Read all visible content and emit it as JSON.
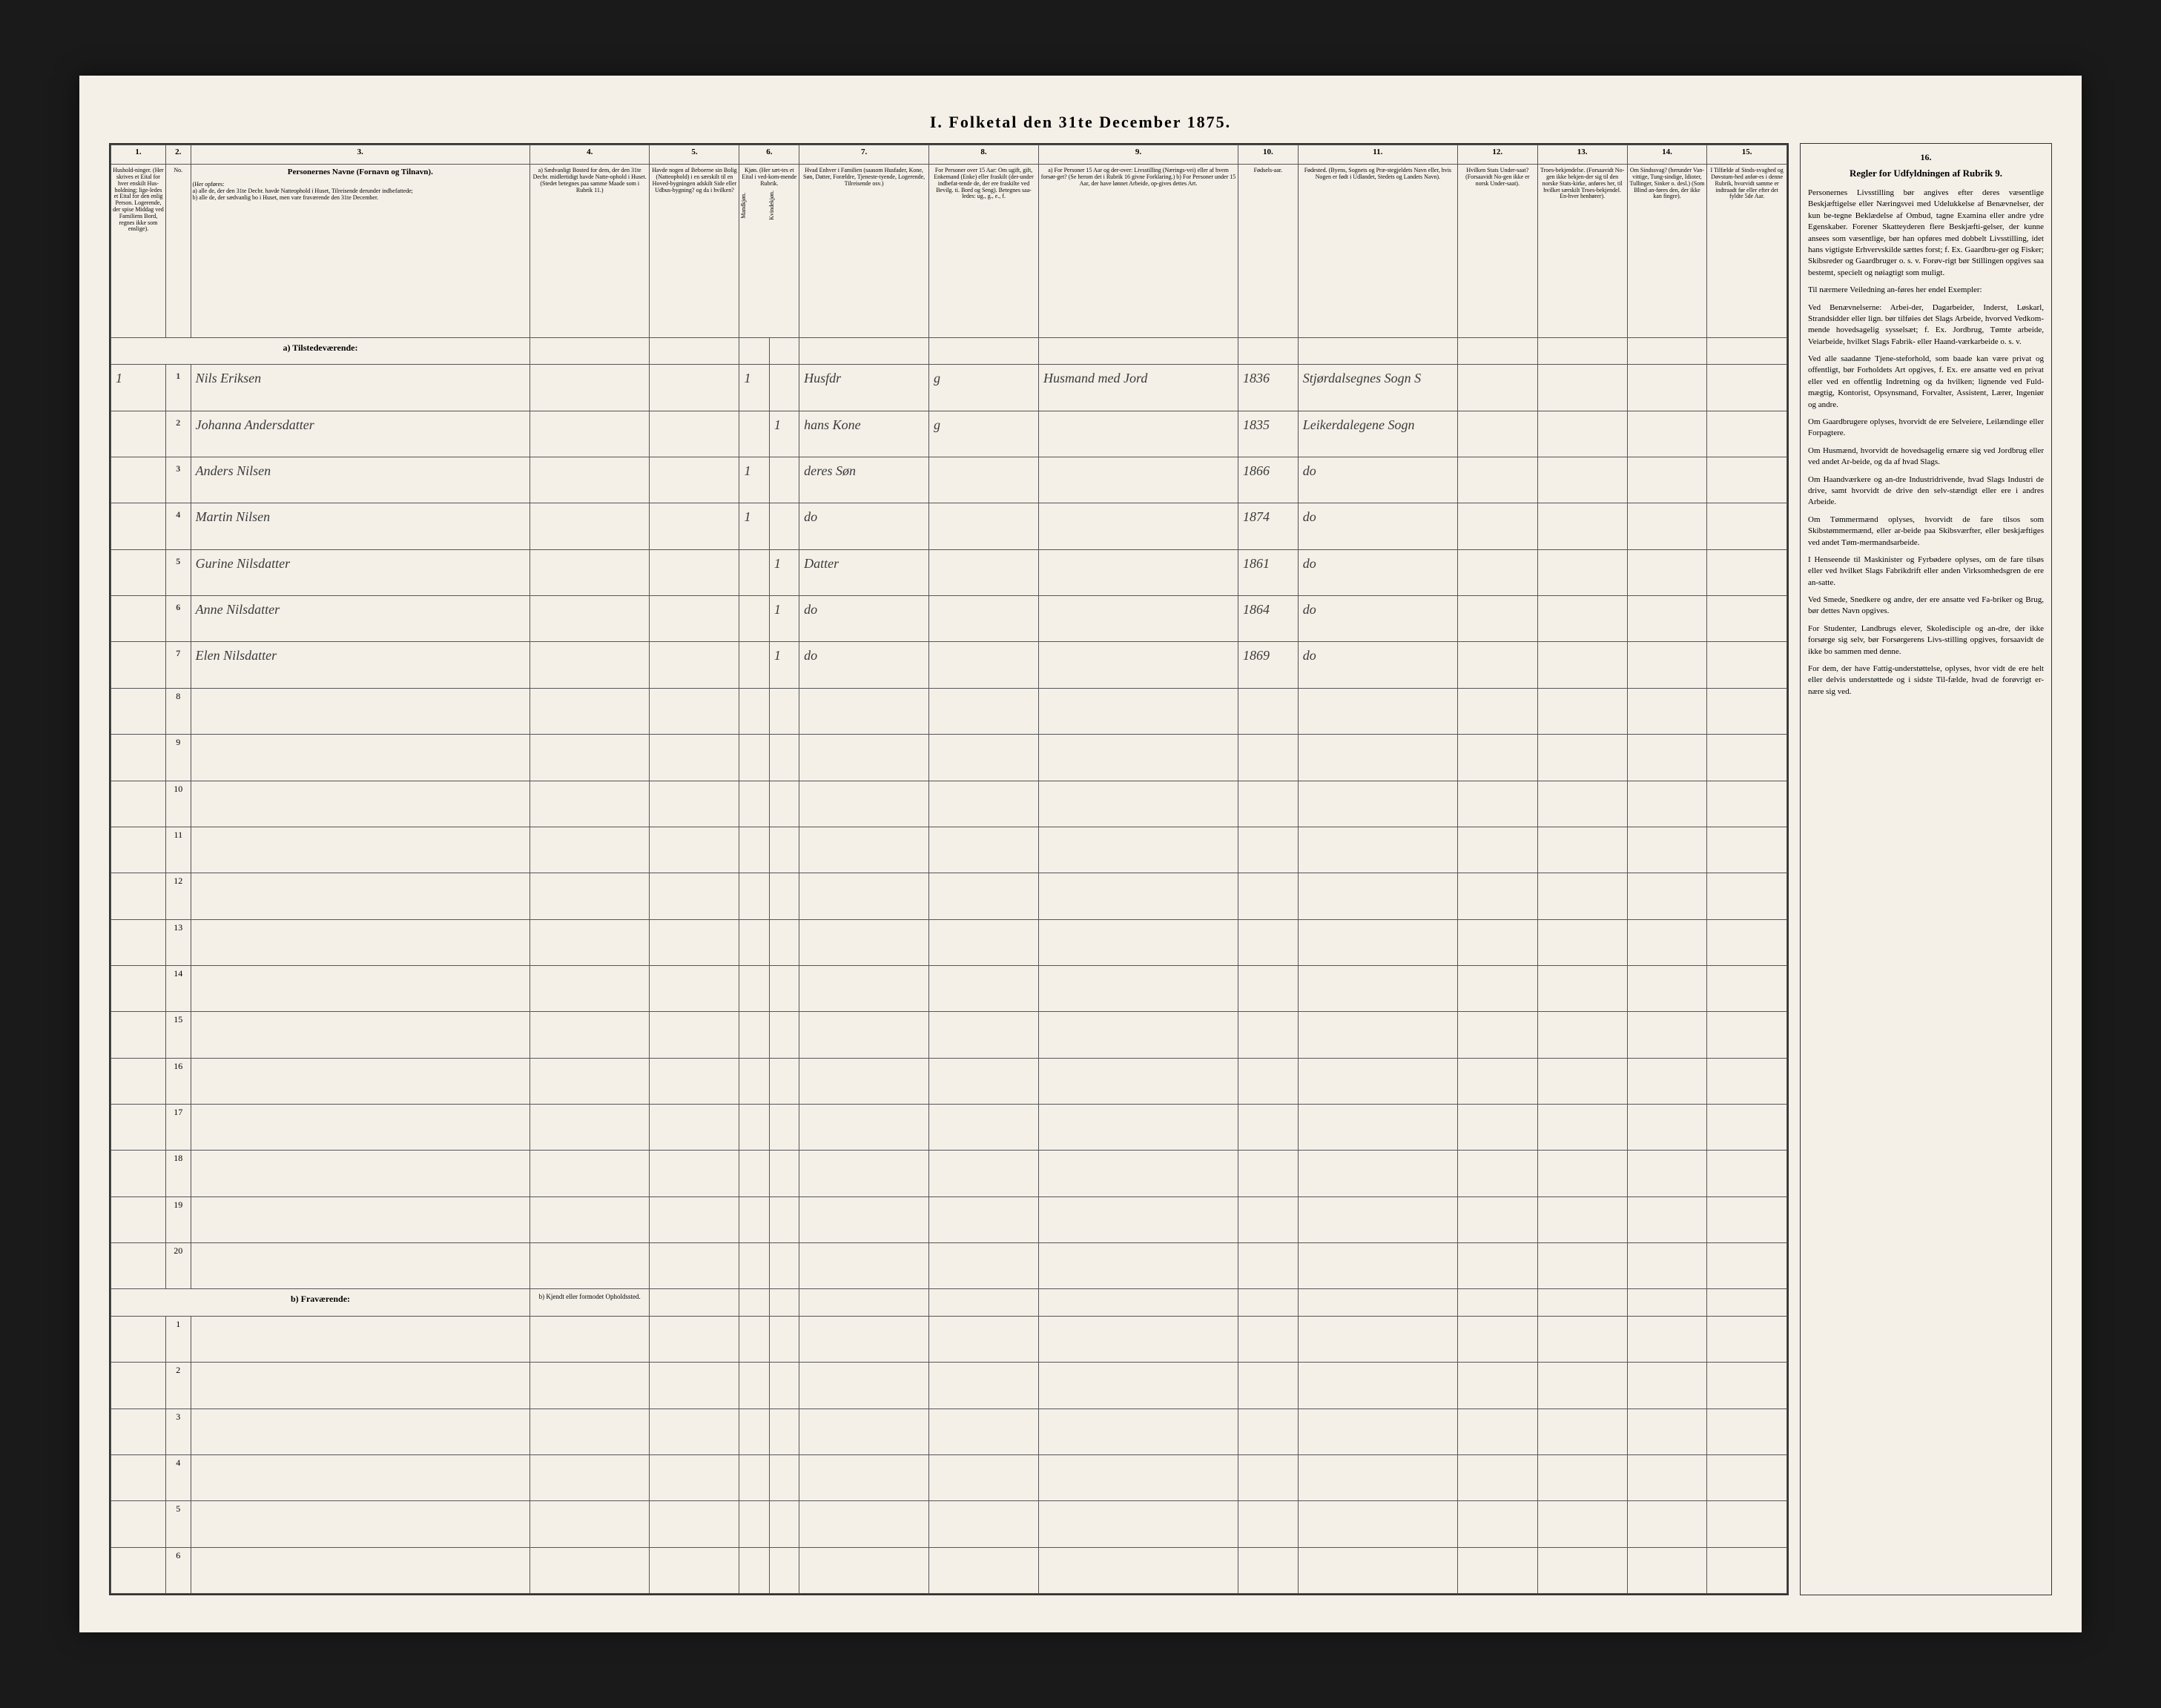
{
  "title": "I. Folketal den 31te December 1875.",
  "columns": {
    "nums": [
      "1.",
      "2.",
      "3.",
      "4.",
      "5.",
      "6.",
      "7.",
      "8.",
      "9.",
      "10.",
      "11.",
      "12.",
      "13.",
      "14.",
      "15.",
      "16."
    ],
    "h1": "Hushold-ninger. (Her skrives et Eital for hver enskilt Hus-holdning; lige-ledes et Eital for den enlig Person. Logerende, der spise Middag ved Familiens Bord, regnes ikke som enslige).",
    "h2": "No.",
    "h3_title": "Personernes Navne (Fornavn og Tilnavn).",
    "h3_sub": "(Her opføres:\na) alle de, der den 31te Decbr. havde Natteophold i Huset, Tilreisende derunder indbefattede;\nb) alle de, der sædvanlig bo i Huset, men vare fraværende den 31te December.",
    "h4": "a) Sædvanligt Bosted for dem, der den 31te Decbr. midlertidigt havde Natte-ophold i Huset. (Stedet betegnes paa samme Maade som i Rubrik 11.)",
    "h5": "Havde nogen af Beboerne sin Bolig (Natteophold) i en særskilt til en Hoved-bygningen adskilt Side eller Udbus-bygning? og da i hvilken?",
    "h6": "Kjøn. (Her sæt-tes et Eital i ved-kom-mende Rubrik.",
    "h6a": "Mandkjøn.",
    "h6b": "Kvindekjøn.",
    "h7": "Hvad Enhver i Familien (saasom Husfader, Kone, Søn, Datter, Forældre, Tjeneste-tyende, Logerende, Tilreisende osv.)",
    "h8": "For Personer over 15 Aar: Om ugift, gift, Enkemand (Enke) eller fraskilt (der-under indbefat-tende de, der ere fraskilte ved Bevilg. ti. Bord og Seng). Betegnes saa-ledes: ug., g., e., f.",
    "h9": "a) For Personer 15 Aar og der-over: Livsstilling (Nærings-vei) eller af hvem forsør-get? (Se herom det i Rubrik 16 givne Forklaring.)\nb) For Personer under 15 Aar, der have lønnet Arbeide, op-gives dettes Art.",
    "h10": "Fødsels-aar.",
    "h11": "Fødested. (Byens, Sognets og Præ-stegjeldets Navn eller, hvis Nogen er født i Udlandet, Stedets og Landets Navn).",
    "h12": "Hvilken Stats Under-saat? (Forsaavidt No-gen ikke er norsk Under-saat).",
    "h13": "Troes-bekjendelse. (Forsaavidt No-gen ikke bekjen-der sig til den norske Stats-kirke, anføres her, til hvilket særskilt Troes-bekjendel. En-hver henhører).",
    "h14": "Om Sindssvag? (herunder Van-vittige, Tung-sindige, Idioter, Tullinger, Sinker o. desl.) (Som Blind an-føres den, der ikke kan fingre).",
    "h15": "I Tilfælde af Sinds-svaghed og Døvstum-hed anfør-es i denne Rubrik, hvorvidt samme er indtraadt før eller efter det fyldte 5de Aar.",
    "h16": "Regler for Udfyldningen af Rubrik 9."
  },
  "section_a": "a) Tilstedeværende:",
  "section_b": "b) Fraværende:",
  "section_b_col4": "b) Kjendt eller formodet Opholdssted.",
  "rows": [
    {
      "hh": "1",
      "n": "1",
      "name": "Nils Eriksen",
      "m": "1",
      "k": "",
      "rel": "Husfdr",
      "ms": "g",
      "occ": "Husmand med Jord",
      "yr": "1836",
      "bp": "Stjørdalsegnes Sogn S"
    },
    {
      "hh": "",
      "n": "2",
      "name": "Johanna Andersdatter",
      "m": "",
      "k": "1",
      "rel": "hans Kone",
      "ms": "g",
      "occ": "",
      "yr": "1835",
      "bp": "Leikerdalegene Sogn"
    },
    {
      "hh": "",
      "n": "3",
      "name": "Anders Nilsen",
      "m": "1",
      "k": "",
      "rel": "deres Søn",
      "ms": "",
      "occ": "",
      "yr": "1866",
      "bp": "do"
    },
    {
      "hh": "",
      "n": "4",
      "name": "Martin Nilsen",
      "m": "1",
      "k": "",
      "rel": "do",
      "ms": "",
      "occ": "",
      "yr": "1874",
      "bp": "do"
    },
    {
      "hh": "",
      "n": "5",
      "name": "Gurine Nilsdatter",
      "m": "",
      "k": "1",
      "rel": "Datter",
      "ms": "",
      "occ": "",
      "yr": "1861",
      "bp": "do"
    },
    {
      "hh": "",
      "n": "6",
      "name": "Anne Nilsdatter",
      "m": "",
      "k": "1",
      "rel": "do",
      "ms": "",
      "occ": "",
      "yr": "1864",
      "bp": "do"
    },
    {
      "hh": "",
      "n": "7",
      "name": "Elen Nilsdatter",
      "m": "",
      "k": "1",
      "rel": "do",
      "ms": "",
      "occ": "",
      "yr": "1869",
      "bp": "do"
    }
  ],
  "empty_a": [
    "8",
    "9",
    "10",
    "11",
    "12",
    "13",
    "14",
    "15",
    "16",
    "17",
    "18",
    "19",
    "20"
  ],
  "empty_b": [
    "1",
    "2",
    "3",
    "4",
    "5",
    "6"
  ],
  "sidebar": {
    "title": "Regler for Udfyldningen af Rubrik 9.",
    "paras": [
      "Personernes Livsstilling bør angives efter deres væsentlige Beskjæftigelse eller Næringsvei med Udelukkelse af Benævnelser, der kun be-tegne Beklædelse af Ombud, tagne Examina eller andre ydre Egenskaber. Forener Skatteyderen flere Beskjæfti-gelser, der kunne ansees som væsentlige, bør han opføres med dobbelt Livsstilling, idet hans vigtigste Erhvervskilde sættes forst; f. Ex. Gaardbru-ger og Fisker; Skibsreder og Gaardbruger o. s. v. Forøv-rigt bør Stillingen opgives saa bestemt, specielt og nøiagtigt som muligt.",
      "Til nærmere Veiledning an-føres her endel Exempler:",
      "Ved Benævnelserne: Arbei-der, Dagarbeider, Inderst, Løskarl, Strandsidder eller lign. bør tilføies det Slags Arbeide, hvorved Vedkom-mende hovedsagelig sysselsæt; f. Ex. Jordbrug, Tømte arbeide, Veiarbeide, hvilket Slags Fabrik- eller Haand-værkarbeide o. s. v.",
      "Ved alle saadanne Tjene-steforhold, som baade kan være privat og offentligt, bør Forholdets Art opgives, f. Ex. ere ansatte ved en privat eller ved en offentlig Indretning og da hvilken; lignende ved Fuld-mægtig, Kontorist, Opsynsmand, Forvalter, Assistent, Lærer, Ingeniør og andre.",
      "Om Gaardbrugere oplyses, hvorvidt de ere Selveiere, Leilændinge eller Forpagtere.",
      "Om Husmænd, hvorvidt de hovedsagelig ernære sig ved Jordbrug eller ved andet Ar-beide, og da af hvad Slags.",
      "Om Haandværkere og an-dre Industridrivende, hvad Slags Industri de drive, samt hvorvidt de drive den selv-stændigt eller ere i andres Arbeide.",
      "Om Tømmermænd oplyses, hvorvidt de fare tilsos som Skibstømmermænd, eller ar-beide paa Skibsværfter, eller beskjæftiges ved andet Tøm-mermandsarbeide.",
      "I Henseende til Maskinister og Fyrbødere oplyses, om de fare tilsøs eller ved hvilket Slags Fabrikdrift eller anden Virksomhedsgren de ere an-satte.",
      "Ved Smede, Snedkere og andre, der ere ansatte ved Fa-briker og Brug, bør dettes Navn opgives.",
      "For Studenter, Landbrugs elever, Skoledisciple og an-dre, der ikke forsørge sig selv, bør Forsørgerens Livs-stilling opgives, forsaavidt de ikke bo sammen med denne.",
      "For dem, der have Fattig-understøttelse, oplyses, hvor vidt de ere helt eller delvis understøttede og i sidste Til-fælde, hvad de forøvrigt er-nære sig ved."
    ]
  },
  "colors": {
    "paper": "#f4f0e8",
    "ink": "#333333",
    "handwriting": "#3a3a3a"
  }
}
